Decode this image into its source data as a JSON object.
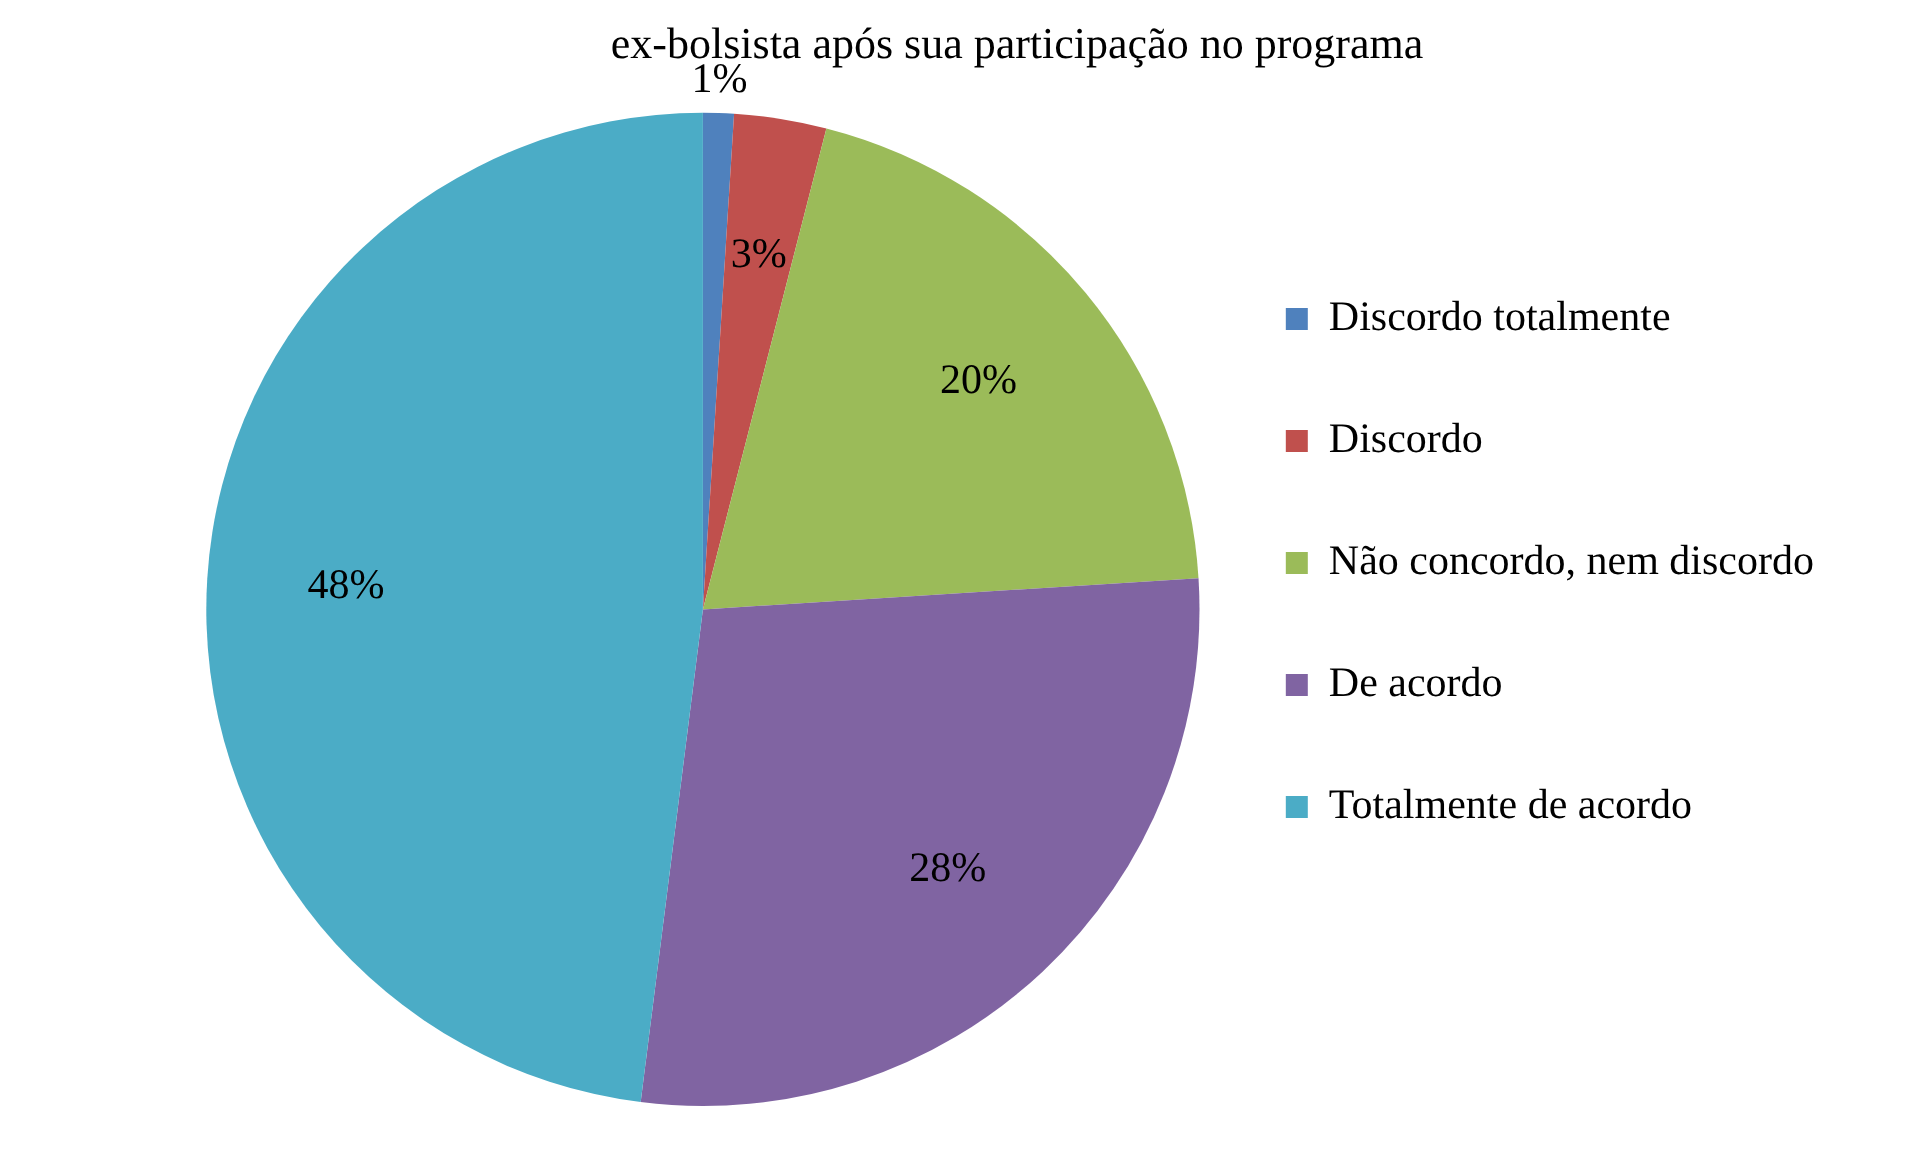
{
  "chart_data": {
    "type": "pie",
    "title": "ex-bolsista após sua participação no programa",
    "categories": [
      "Discordo totalmente",
      "Discordo",
      "Não concordo, nem discordo",
      "De acordo",
      "Totalmente de acordo"
    ],
    "values": [
      1,
      3,
      20,
      28,
      48
    ],
    "value_labels": [
      "1%",
      "3%",
      "20%",
      "28%",
      "48%"
    ],
    "colors": [
      "#4f81bd",
      "#c0504d",
      "#9bbb59",
      "#8064a2",
      "#4bacc6"
    ],
    "legend": "right"
  }
}
